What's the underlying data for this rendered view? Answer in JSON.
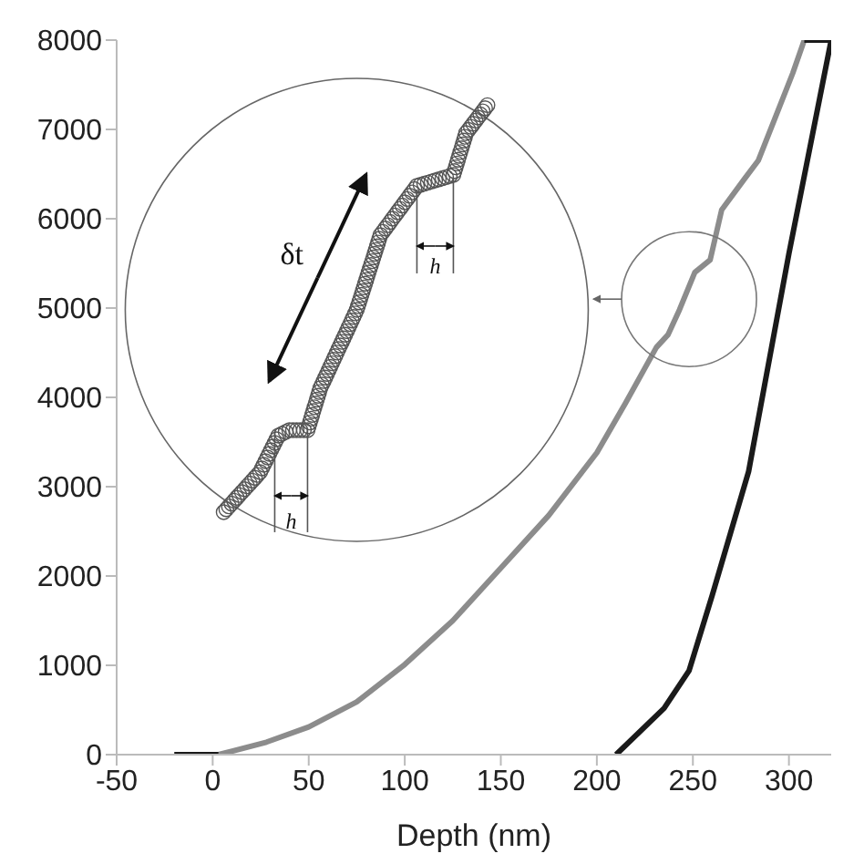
{
  "chart_data": {
    "type": "line",
    "xlabel": "Depth (nm)",
    "xlim": [
      -50,
      322
    ],
    "xticks": [
      -50,
      0,
      50,
      100,
      150,
      200,
      250,
      300
    ],
    "ylim": [
      0,
      8000
    ],
    "yticks": [
      0,
      1000,
      2000,
      3000,
      4000,
      5000,
      6000,
      7000,
      8000
    ],
    "annotations": [
      "δt",
      "h",
      "h"
    ],
    "series": [
      {
        "color": "#8c8c8c",
        "x": [
          3,
          28,
          50,
          75,
          100,
          125,
          150,
          175,
          200,
          215,
          231,
          237,
          243,
          251,
          259,
          265,
          277,
          284,
          293,
          302,
          308
        ],
        "values": [
          0,
          140,
          310,
          590,
          1010,
          1500,
          2090,
          2680,
          3380,
          3940,
          4560,
          4700,
          4980,
          5400,
          5540,
          6100,
          6450,
          6650,
          7140,
          7630,
          8000
        ]
      },
      {
        "color": "#1a1a1a",
        "x": [
          308,
          322,
          300,
          279,
          260,
          248,
          235,
          210
        ],
        "values": [
          8000,
          8000,
          5610,
          3170,
          1780,
          940,
          520,
          0
        ]
      },
      {
        "color": "#1a1a1a",
        "x": [
          -20,
          3
        ],
        "values": [
          0,
          0
        ]
      }
    ]
  }
}
